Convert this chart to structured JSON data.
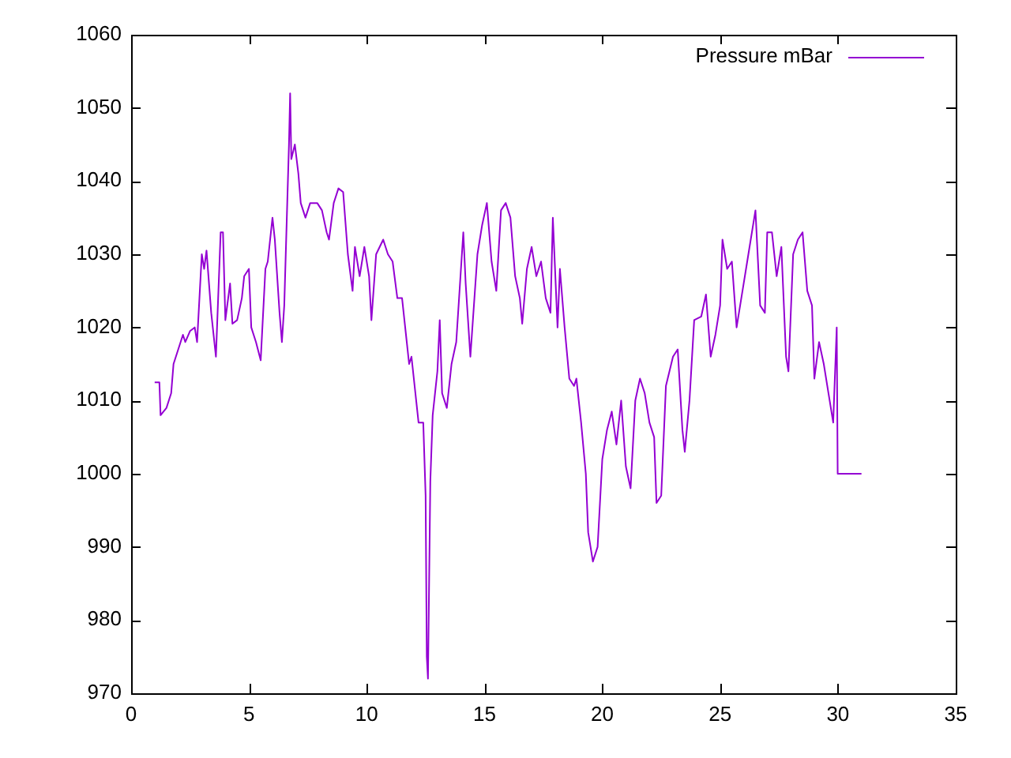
{
  "chart_data": {
    "type": "line",
    "legend": "top right",
    "grid": false,
    "marker": "none",
    "line_style": "solid",
    "xlim": [
      0,
      35
    ],
    "xticks": [
      0,
      5,
      10,
      15,
      20,
      25,
      30,
      35
    ],
    "ylim": [
      970,
      1060
    ],
    "yticks": [
      970,
      980,
      990,
      1000,
      1010,
      1020,
      1030,
      1040,
      1050,
      1060
    ],
    "series": [
      {
        "name": "Pressure mBar",
        "color": "#9400d3",
        "x": [
          1.0,
          1.2,
          1.25,
          1.5,
          1.7,
          1.8,
          2.0,
          2.2,
          2.3,
          2.5,
          2.7,
          2.8,
          2.9,
          3.0,
          3.1,
          3.2,
          3.4,
          3.6,
          3.8,
          3.9,
          4.0,
          4.2,
          4.3,
          4.5,
          4.7,
          4.8,
          5.0,
          5.1,
          5.3,
          5.5,
          5.7,
          5.8,
          6.0,
          6.1,
          6.3,
          6.4,
          6.5,
          6.7,
          6.75,
          6.8,
          6.95,
          7.1,
          7.2,
          7.4,
          7.6,
          7.9,
          8.1,
          8.3,
          8.4,
          8.6,
          8.8,
          9.0,
          9.2,
          9.4,
          9.5,
          9.7,
          9.9,
          10.1,
          10.2,
          10.4,
          10.7,
          10.9,
          11.1,
          11.3,
          11.5,
          11.7,
          11.8,
          11.9,
          12.2,
          12.4,
          12.5,
          12.55,
          12.6,
          12.7,
          12.8,
          13.0,
          13.1,
          13.2,
          13.4,
          13.6,
          13.8,
          14.0,
          14.1,
          14.2,
          14.4,
          14.7,
          14.9,
          15.1,
          15.3,
          15.5,
          15.7,
          15.9,
          16.1,
          16.3,
          16.5,
          16.6,
          16.8,
          17.0,
          17.2,
          17.4,
          17.6,
          17.8,
          17.9,
          18.1,
          18.2,
          18.4,
          18.6,
          18.8,
          18.9,
          19.1,
          19.3,
          19.4,
          19.6,
          19.8,
          20.0,
          20.2,
          20.4,
          20.6,
          20.8,
          21.0,
          21.2,
          21.4,
          21.6,
          21.8,
          22.0,
          22.2,
          22.3,
          22.5,
          22.7,
          23.0,
          23.2,
          23.4,
          23.5,
          23.7,
          23.9,
          24.2,
          24.4,
          24.6,
          24.8,
          25.0,
          25.1,
          25.3,
          25.5,
          25.7,
          26.0,
          26.2,
          26.5,
          26.7,
          26.9,
          27.0,
          27.2,
          27.4,
          27.6,
          27.8,
          27.9,
          28.1,
          28.3,
          28.5,
          28.7,
          28.9,
          29.0,
          29.2,
          29.4,
          29.6,
          29.8,
          29.95,
          29.99,
          31.0
        ],
        "values": [
          1012.5,
          1012.5,
          1008,
          1009,
          1011,
          1015,
          1017,
          1019,
          1018,
          1019.5,
          1020,
          1018,
          1024,
          1030,
          1028,
          1030.5,
          1022,
          1016,
          1033,
          1033,
          1021,
          1026,
          1020.5,
          1021,
          1024,
          1027,
          1028,
          1020,
          1018,
          1015.5,
          1028,
          1029,
          1035,
          1032,
          1022,
          1018,
          1023,
          1045,
          1052,
          1043,
          1045,
          1041,
          1037,
          1035,
          1037,
          1037,
          1036,
          1033,
          1032,
          1037,
          1039,
          1038.5,
          1030,
          1025,
          1031,
          1027,
          1031,
          1027,
          1021,
          1030,
          1032,
          1030,
          1029,
          1024,
          1024,
          1018,
          1015,
          1016,
          1007,
          1007,
          997,
          975,
          972,
          999,
          1008,
          1014,
          1021,
          1011,
          1009,
          1015,
          1018,
          1028,
          1033,
          1026,
          1016,
          1030,
          1034,
          1037,
          1029,
          1025,
          1036,
          1037,
          1035,
          1027,
          1024,
          1020.5,
          1028,
          1031,
          1027,
          1029,
          1024,
          1022,
          1035,
          1020,
          1028,
          1020,
          1013,
          1012,
          1013,
          1007,
          1000,
          992,
          988,
          990,
          1002,
          1006,
          1008.5,
          1004,
          1010,
          1001,
          998,
          1010,
          1013,
          1011,
          1007,
          1005,
          996,
          997,
          1012,
          1016,
          1017,
          1006,
          1003,
          1010,
          1021,
          1021.5,
          1024.5,
          1016,
          1019,
          1023,
          1032,
          1028,
          1029,
          1020,
          1026,
          1030,
          1036,
          1023,
          1022,
          1033,
          1033,
          1027,
          1031,
          1016,
          1014,
          1030,
          1032,
          1033,
          1025,
          1023,
          1013,
          1018,
          1015,
          1011,
          1007,
          1020,
          1000,
          1000
        ]
      }
    ]
  }
}
